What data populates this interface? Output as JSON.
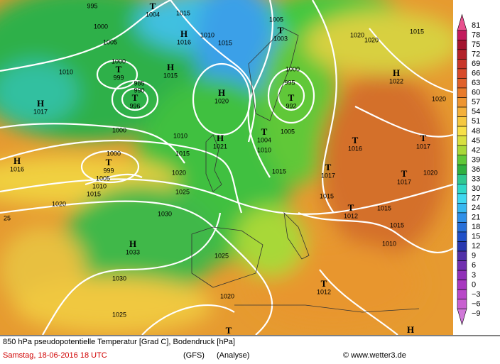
{
  "map": {
    "pressure_centers": [
      {
        "symbol": "T",
        "value": "1004"
      },
      {
        "symbol": "H",
        "value": "1016"
      },
      {
        "symbol": "T",
        "value": "1003"
      },
      {
        "symbol": "T",
        "value": "999"
      },
      {
        "symbol": "H",
        "value": "1015"
      },
      {
        "symbol": "H",
        "value": "1022"
      },
      {
        "symbol": "H",
        "value": "1017"
      },
      {
        "symbol": "T",
        "value": "996"
      },
      {
        "symbol": "H",
        "value": "1020"
      },
      {
        "symbol": "T",
        "value": "992"
      },
      {
        "symbol": "T",
        "value": "1004"
      },
      {
        "symbol": "H",
        "value": "1021"
      },
      {
        "symbol": "T",
        "value": "1016"
      },
      {
        "symbol": "T",
        "value": "1017"
      },
      {
        "symbol": "H",
        "value": "1016"
      },
      {
        "symbol": "T",
        "value": "999"
      },
      {
        "symbol": "T",
        "value": "1017"
      },
      {
        "symbol": "T",
        "value": "1017"
      },
      {
        "symbol": "T",
        "value": "1012"
      },
      {
        "symbol": "H",
        "value": "1033"
      },
      {
        "symbol": "T",
        "value": "1012"
      },
      {
        "symbol": "T"
      },
      {
        "symbol": "H"
      }
    ],
    "isobar_labels": [
      "995",
      "1000",
      "1005",
      "1010",
      "1000",
      "985",
      "990",
      "1000",
      "1010",
      "1015",
      "1020",
      "1025",
      "1030",
      "1025",
      "1030",
      "1025",
      "1020",
      "1005",
      "1010",
      "1015",
      "1015",
      "1020",
      "1020",
      "1015",
      "1000",
      "995",
      "1005",
      "1010",
      "1015",
      "1000",
      "1005",
      "1010",
      "1015",
      "1020",
      "1015",
      "1015",
      "1015",
      "1010",
      "1020",
      "1020",
      "25"
    ],
    "colorbar": [
      {
        "label": "81",
        "color": "#e8508e"
      },
      {
        "label": "78",
        "color": "#c21a5c"
      },
      {
        "label": "75",
        "color": "#a3142e"
      },
      {
        "label": "72",
        "color": "#b3222a"
      },
      {
        "label": "69",
        "color": "#c8362a"
      },
      {
        "label": "66",
        "color": "#d84a2a"
      },
      {
        "label": "63",
        "color": "#e0602a"
      },
      {
        "label": "60",
        "color": "#e87a2a"
      },
      {
        "label": "57",
        "color": "#ee9530"
      },
      {
        "label": "54",
        "color": "#f3b03a"
      },
      {
        "label": "51",
        "color": "#f5c840"
      },
      {
        "label": "48",
        "color": "#f7e048"
      },
      {
        "label": "45",
        "color": "#d8e040"
      },
      {
        "label": "42",
        "color": "#a8d838"
      },
      {
        "label": "39",
        "color": "#60c838"
      },
      {
        "label": "36",
        "color": "#30b040"
      },
      {
        "label": "33",
        "color": "#30c890"
      },
      {
        "label": "30",
        "color": "#30d8c8"
      },
      {
        "label": "27",
        "color": "#40d8f0"
      },
      {
        "label": "24",
        "color": "#38b8f0"
      },
      {
        "label": "21",
        "color": "#3090e8"
      },
      {
        "label": "18",
        "color": "#2870d8"
      },
      {
        "label": "15",
        "color": "#2050c8"
      },
      {
        "label": "12",
        "color": "#2838b0"
      },
      {
        "label": "9",
        "color": "#5030a8"
      },
      {
        "label": "6",
        "color": "#7030b0"
      },
      {
        "label": "3",
        "color": "#9030b8"
      },
      {
        "label": "0",
        "color": "#a838c0"
      },
      {
        "label": "−3",
        "color": "#b848c8"
      },
      {
        "label": "−6",
        "color": "#c860d0"
      },
      {
        "label": "−9",
        "color": "#d078d8"
      }
    ],
    "footer": {
      "title": "850 hPa pseudopotentielle Temperatur [Grad C], Bodendruck [hPa]",
      "date": "Samstag, 18-06-2016  18 UTC",
      "model": "(GFS)",
      "run": "(Analyse)",
      "credit": "© www.wetter3.de"
    }
  }
}
